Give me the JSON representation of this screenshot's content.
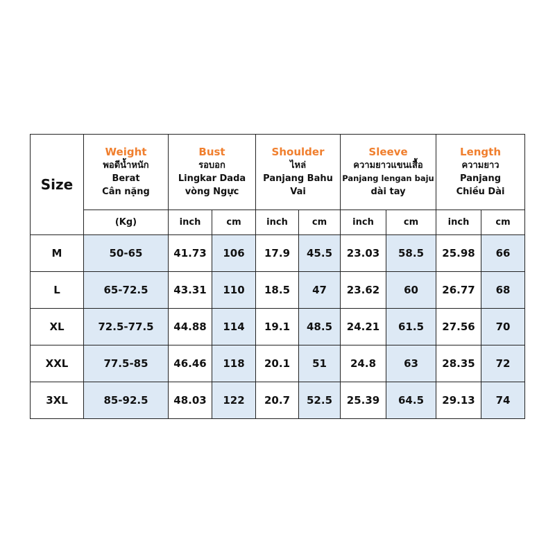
{
  "colors": {
    "accent": "#f07f2e",
    "highlight": "#dde9f5"
  },
  "header": {
    "size": "Size",
    "weight": {
      "title": "Weight",
      "lines": [
        "พอดีน้ำหนัก",
        "Berat",
        "Cân nặng"
      ],
      "unit": "(Kg)"
    },
    "bust": {
      "title": "Bust",
      "lines": [
        "รอบอก",
        "Lingkar Dada",
        "vòng Ngực"
      ]
    },
    "shoulder": {
      "title": "Shoulder",
      "lines": [
        "ไหล่",
        "Panjang Bahu",
        "Vai"
      ]
    },
    "sleeve": {
      "title": "Sleeve",
      "lines": [
        "ความยาวแขนเสื้อ",
        "Panjang lengan baju",
        "dài tay"
      ]
    },
    "length": {
      "title": "Length",
      "lines": [
        "ความยาว",
        "Panjang",
        "Chiều Dài"
      ]
    },
    "inch": "inch",
    "cm": "cm"
  },
  "rows": [
    [
      "M",
      "50-65",
      "41.73",
      "106",
      "17.9",
      "45.5",
      "23.03",
      "58.5",
      "25.98",
      "66"
    ],
    [
      "L",
      "65-72.5",
      "43.31",
      "110",
      "18.5",
      "47",
      "23.62",
      "60",
      "26.77",
      "68"
    ],
    [
      "XL",
      "72.5-77.5",
      "44.88",
      "114",
      "19.1",
      "48.5",
      "24.21",
      "61.5",
      "27.56",
      "70"
    ],
    [
      "XXL",
      "77.5-85",
      "46.46",
      "118",
      "20.1",
      "51",
      "24.8",
      "63",
      "28.35",
      "72"
    ],
    [
      "3XL",
      "85-92.5",
      "48.03",
      "122",
      "20.7",
      "52.5",
      "25.39",
      "64.5",
      "29.13",
      "74"
    ]
  ]
}
